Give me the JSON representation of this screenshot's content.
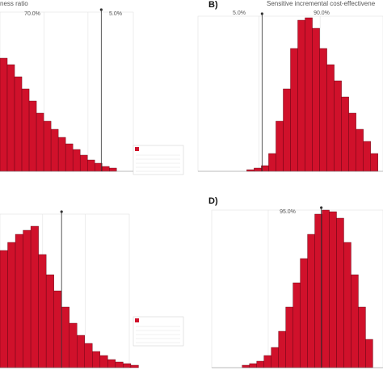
{
  "chart_data": [
    {
      "type": "histogram",
      "title": "ness ratio",
      "color": "#d0112b",
      "bins": [
        0,
        1,
        2,
        3,
        4,
        5,
        6,
        7,
        8,
        9,
        10,
        11,
        12,
        13,
        14,
        15,
        16
      ],
      "counts": [
        140,
        132,
        117,
        102,
        87,
        72,
        62,
        52,
        42,
        34,
        27,
        20,
        14,
        10,
        6,
        4
      ],
      "xlim": [
        0,
        18.3
      ],
      "ylim": [
        0,
        197
      ],
      "cutoff": 13.9,
      "annotations": [
        "70.0%",
        "5.0%"
      ]
    },
    {
      "type": "histogram",
      "label": "B)",
      "title": "Sensitive incremental cost-effectivene",
      "color": "#d0112b",
      "bins": [
        0,
        1,
        2,
        3,
        4,
        5,
        6,
        7,
        8,
        9,
        10,
        11,
        12,
        13,
        14,
        15,
        16,
        17,
        18
      ],
      "counts": [
        2,
        4,
        7,
        22,
        62,
        102,
        152,
        187,
        190,
        177,
        152,
        132,
        112,
        92,
        72,
        52,
        37,
        22
      ],
      "xlim": [
        -6.7,
        18.7
      ],
      "ylim": [
        0,
        192
      ],
      "cutoff": 2.1,
      "annotations": [
        "5.0%",
        "90.0%"
      ]
    },
    {
      "type": "histogram",
      "color": "#d0112b",
      "bins": [
        0,
        1,
        2,
        3,
        4,
        5,
        6,
        7,
        8,
        9,
        10,
        11,
        12,
        13,
        14,
        15,
        16,
        17,
        18
      ],
      "counts": [
        145,
        155,
        165,
        170,
        175,
        140,
        115,
        95,
        75,
        55,
        40,
        30,
        20,
        15,
        10,
        7,
        5,
        3
      ],
      "xlim": [
        0,
        16.8
      ],
      "ylim": [
        0,
        190
      ],
      "cutoff": 8,
      "annotations": []
    },
    {
      "type": "histogram",
      "label": "D)",
      "color": "#d0112b",
      "bins": [
        0,
        1,
        2,
        3,
        4,
        5,
        6,
        7,
        8,
        9,
        10,
        11,
        12,
        13,
        14,
        15,
        16,
        17,
        18
      ],
      "counts": [
        3,
        5,
        8,
        15,
        25,
        45,
        75,
        105,
        135,
        165,
        190,
        195,
        193,
        185,
        155,
        115,
        75,
        35
      ],
      "xlim": [
        -4.2,
        19.4
      ],
      "ylim": [
        0,
        195
      ],
      "cutoff": 10.9,
      "annotations": [
        "95.0%"
      ]
    }
  ]
}
